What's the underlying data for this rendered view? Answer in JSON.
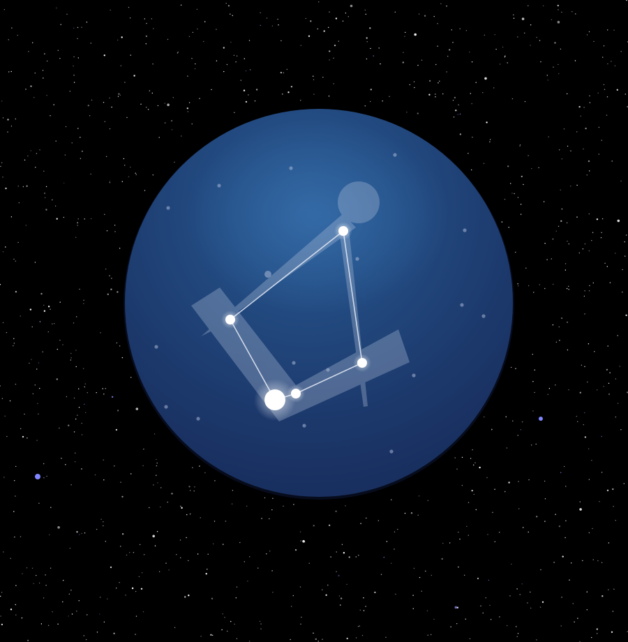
{
  "scene": {
    "subject": "constellation-icon",
    "background_color": "#000000",
    "disc_colors": {
      "highlight": "#2c5a92",
      "mid": "#1e3f74",
      "edge": "#172d5c"
    },
    "constellation_line_color": "#e6ecf8",
    "star_color": "#ffffff",
    "accent_star_color": "#7f86ff",
    "ghost_shape_color": "#b9c7de"
  }
}
